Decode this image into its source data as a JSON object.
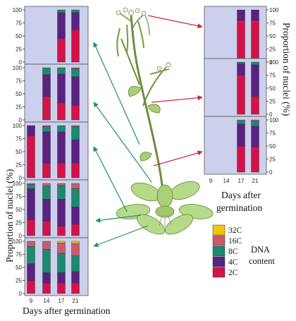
{
  "figure": {
    "left_ylabel": "Proportion of nuclei (%)",
    "right_ylabel": "Proportion of nuclei (%)",
    "left_xlabel": "Days after  germination",
    "right_xlabel_line1": "Days after",
    "right_xlabel_line2": "germination",
    "legend_title_line1": "DNA",
    "legend_title_line2": "content"
  },
  "chart_data": {
    "type": "bar",
    "stacked": true,
    "categories": [
      "9",
      "14",
      "17",
      "21"
    ],
    "ylim": [
      0,
      100
    ],
    "yticks": [
      0,
      25,
      50,
      75,
      100
    ],
    "xlabel": "Days after germination",
    "ylabel": "Proportion of nuclei (%)",
    "grid": false,
    "colors": {
      "2C": "#d4124a",
      "4C": "#5a2280",
      "8C": "#1b8a6f",
      "16C": "#cb5a6d",
      "32C": "#f3c500",
      "panel_bg": "#ccd0ec"
    },
    "legend": [
      {
        "name": "32C"
      },
      {
        "name": "16C"
      },
      {
        "name": "8C"
      },
      {
        "name": "4C"
      },
      {
        "name": "2C"
      }
    ],
    "panels": [
      {
        "column": "left",
        "row": 1,
        "series": [
          {
            "name": "2C",
            "values": [
              null,
              null,
              45,
              62
            ]
          },
          {
            "name": "4C",
            "values": [
              null,
              null,
              50,
              33
            ]
          },
          {
            "name": "8C",
            "values": [
              null,
              null,
              5,
              5
            ]
          }
        ]
      },
      {
        "column": "left",
        "row": 2,
        "series": [
          {
            "name": "2C",
            "values": [
              null,
              45,
              33,
              28
            ]
          },
          {
            "name": "4C",
            "values": [
              null,
              42,
              55,
              55
            ]
          },
          {
            "name": "8C",
            "values": [
              null,
              13,
              12,
              15
            ]
          },
          {
            "name": "16C",
            "values": [
              null,
              0,
              0,
              2
            ]
          }
        ]
      },
      {
        "column": "left",
        "row": 3,
        "series": [
          {
            "name": "2C",
            "values": [
              80,
              28,
              28,
              28
            ]
          },
          {
            "name": "4C",
            "values": [
              20,
              60,
              60,
              45
            ]
          },
          {
            "name": "8C",
            "values": [
              0,
              10,
              12,
              25
            ]
          },
          {
            "name": "16C",
            "values": [
              0,
              2,
              0,
              2
            ]
          }
        ]
      },
      {
        "column": "left",
        "row": 4,
        "series": [
          {
            "name": "2C",
            "values": [
              30,
              28,
              18,
              22
            ]
          },
          {
            "name": "4C",
            "values": [
              60,
              42,
              52,
              33
            ]
          },
          {
            "name": "8C",
            "values": [
              8,
              25,
              26,
              35
            ]
          },
          {
            "name": "16C",
            "values": [
              2,
              5,
              4,
              10
            ]
          }
        ]
      },
      {
        "column": "left",
        "row": 5,
        "series": [
          {
            "name": "2C",
            "values": [
              25,
              20,
              20,
              20
            ]
          },
          {
            "name": "4C",
            "values": [
              32,
              20,
              20,
              22
            ]
          },
          {
            "name": "8C",
            "values": [
              33,
              45,
              37,
              30
            ]
          },
          {
            "name": "16C",
            "values": [
              10,
              15,
              20,
              24
            ]
          },
          {
            "name": "32C",
            "values": [
              0,
              0,
              3,
              4
            ]
          }
        ]
      },
      {
        "column": "right",
        "row": 1,
        "series": [
          {
            "name": "2C",
            "values": [
              null,
              null,
              80,
              80
            ]
          },
          {
            "name": "4C",
            "values": [
              null,
              null,
              20,
              20
            ]
          }
        ]
      },
      {
        "column": "right",
        "row": 2,
        "series": [
          {
            "name": "2C",
            "values": [
              null,
              null,
              75,
              35
            ]
          },
          {
            "name": "4C",
            "values": [
              null,
              null,
              22,
              60
            ]
          },
          {
            "name": "8C",
            "values": [
              null,
              null,
              3,
              5
            ]
          }
        ]
      },
      {
        "column": "right",
        "row": 3,
        "series": [
          {
            "name": "2C",
            "values": [
              null,
              null,
              50,
              48
            ]
          },
          {
            "name": "4C",
            "values": [
              null,
              null,
              42,
              40
            ]
          },
          {
            "name": "8C",
            "values": [
              null,
              null,
              8,
              10
            ]
          },
          {
            "name": "16C",
            "values": [
              null,
              null,
              0,
              2
            ]
          }
        ]
      }
    ]
  }
}
